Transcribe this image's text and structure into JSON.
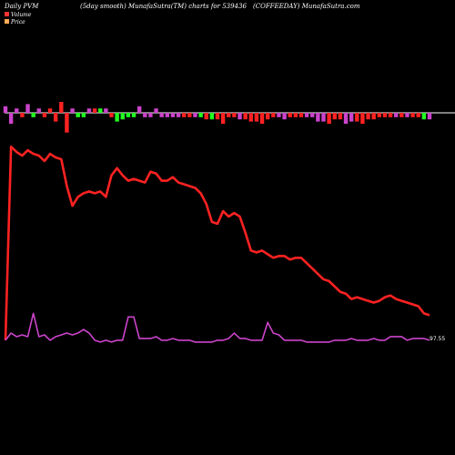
{
  "header": {
    "left": "Daily PVM",
    "subtitle": "(5day smooth) MunafaSutra(TM) charts for 539436",
    "right": "(COFFEEDAY) MunafaSutra.com"
  },
  "legend": [
    {
      "label": "Volume",
      "color": "#ff3333"
    },
    {
      "label": "Price",
      "color": "#ffaa55"
    }
  ],
  "colors": {
    "background": "#000000",
    "price_line": "#ff2222",
    "pvm_line": "#cc44cc",
    "baseline": "#ffffff",
    "bar_up": "#22ff22",
    "bar_down": "#ff2222",
    "bar_neutral": "#cc44cc"
  },
  "chart_data": {
    "type": "line",
    "ylabel_value": "97.55",
    "x": [
      1,
      2,
      3,
      4,
      5,
      6,
      7,
      8,
      9,
      10,
      11,
      12,
      13,
      14,
      15,
      16,
      17,
      18,
      19,
      20,
      21,
      22,
      23,
      24,
      25,
      26,
      27,
      28,
      29,
      30,
      31,
      32,
      33,
      34,
      35,
      36,
      37,
      38,
      39,
      40,
      41,
      42,
      43,
      44,
      45,
      46,
      47,
      48,
      49,
      50,
      51,
      52,
      53,
      54,
      55,
      56,
      57,
      58,
      59,
      60,
      61,
      62,
      63,
      64,
      65,
      66,
      67,
      68,
      69,
      70,
      71,
      72,
      73,
      74,
      75,
      76,
      77
    ],
    "series": [
      {
        "name": "Price",
        "values": [
          64,
          172,
          169,
          167,
          170,
          168,
          167,
          164,
          168,
          166,
          165,
          150,
          139,
          144,
          146,
          147,
          146,
          147,
          144,
          156,
          160,
          156,
          153,
          154,
          153,
          152,
          158,
          157,
          153,
          153,
          155,
          152,
          151,
          150,
          149,
          146,
          140,
          130,
          129,
          136,
          133,
          135,
          133,
          124,
          114,
          113,
          114,
          112,
          110,
          111,
          111,
          109,
          110,
          110,
          107,
          104,
          101,
          98,
          97,
          94,
          91,
          90,
          87,
          88,
          87,
          86,
          85,
          86,
          88,
          89,
          87,
          86,
          85,
          84,
          83,
          79,
          78
        ]
      },
      {
        "name": "PVM",
        "values": [
          64,
          68,
          66,
          67,
          66,
          79,
          66,
          67,
          64,
          66,
          67,
          68,
          67,
          68,
          70,
          68,
          64,
          63,
          64,
          63,
          64,
          64,
          77,
          77,
          65,
          65,
          65,
          66,
          64,
          64,
          65,
          64,
          64,
          64,
          63,
          63,
          63,
          63,
          64,
          64,
          65,
          68,
          65,
          65,
          64,
          64,
          64,
          74,
          68,
          67,
          64,
          64,
          64,
          64,
          63,
          63,
          63,
          63,
          63,
          64,
          64,
          64,
          65,
          64,
          64,
          64,
          65,
          64,
          64,
          66,
          66,
          66,
          64,
          65,
          65,
          65,
          64
        ]
      }
    ],
    "volume_bars": [
      3,
      -5,
      2,
      -2,
      4,
      -2,
      2,
      -2,
      2,
      -4,
      5,
      -9,
      2,
      -2,
      -2,
      2,
      2,
      2,
      2,
      -2,
      -4,
      -3,
      -2,
      -2,
      3,
      -2,
      -2,
      2,
      -2,
      -2,
      -2,
      -2,
      -2,
      -2,
      -2,
      -2,
      -3,
      -3,
      -3,
      -5,
      -2,
      -2,
      -3,
      -3,
      -4,
      -4,
      -5,
      -3,
      -2,
      -2,
      -3,
      -2,
      -2,
      -2,
      -2,
      -2,
      -4,
      -4,
      -5,
      -3,
      -3,
      -5,
      -4,
      -4,
      -5,
      -3,
      -3,
      -2,
      -2,
      -2,
      -2,
      -2,
      -2,
      -2,
      -2,
      -3,
      -3
    ],
    "volume_bar_colors": [
      "m",
      "m",
      "m",
      "r",
      "m",
      "g",
      "m",
      "r",
      "r",
      "r",
      "r",
      "r",
      "m",
      "g",
      "g",
      "m",
      "r",
      "g",
      "m",
      "r",
      "g",
      "g",
      "g",
      "g",
      "m",
      "m",
      "m",
      "m",
      "m",
      "m",
      "m",
      "m",
      "r",
      "r",
      "m",
      "g",
      "r",
      "g",
      "r",
      "r",
      "r",
      "r",
      "m",
      "r",
      "r",
      "r",
      "r",
      "r",
      "r",
      "m",
      "m",
      "r",
      "r",
      "r",
      "m",
      "m",
      "m",
      "m",
      "r",
      "r",
      "r",
      "m",
      "m",
      "r",
      "r",
      "r",
      "r",
      "r",
      "r",
      "r",
      "m",
      "r",
      "m",
      "r",
      "r",
      "g",
      "m"
    ]
  }
}
